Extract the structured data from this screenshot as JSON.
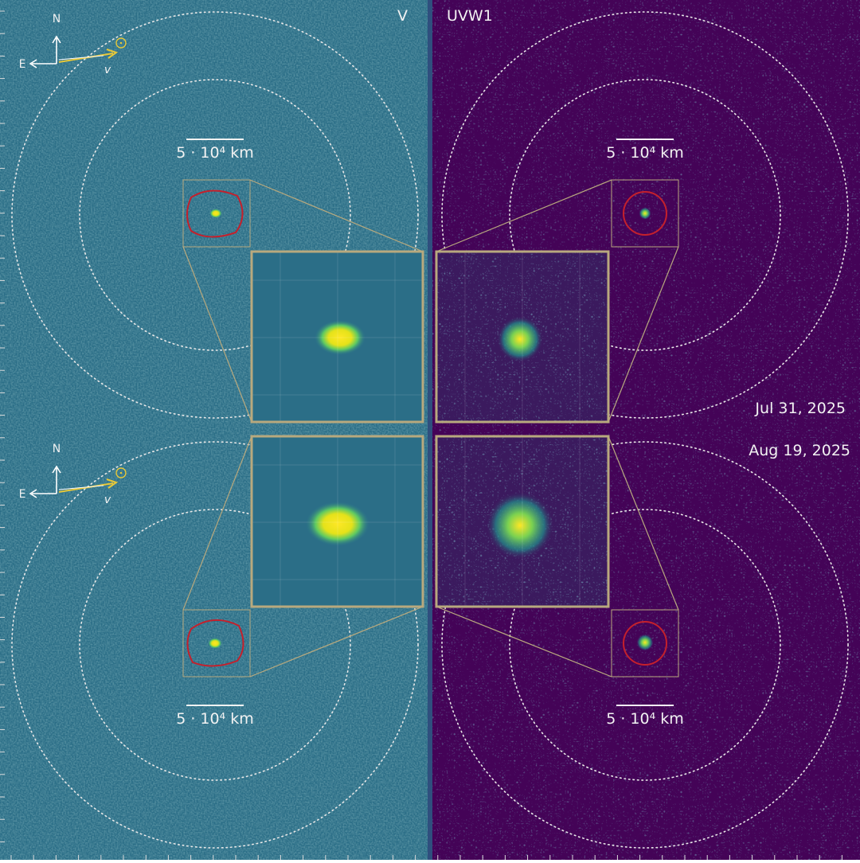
{
  "filters": [
    "V",
    "UVW1"
  ],
  "dates": [
    "Jul 31, 2025",
    "Aug 19, 2025"
  ],
  "panels": [
    {
      "scale_bar": "5 · 10⁴ km",
      "compass": {
        "north": "N",
        "east": "E",
        "velocity": "v"
      }
    },
    {
      "scale_bar": "5 · 10⁴ km"
    },
    {
      "scale_bar": "5 · 10⁴ km",
      "compass": {
        "north": "N",
        "east": "E",
        "velocity": "v"
      }
    },
    {
      "scale_bar": "5 · 10⁴ km"
    }
  ]
}
